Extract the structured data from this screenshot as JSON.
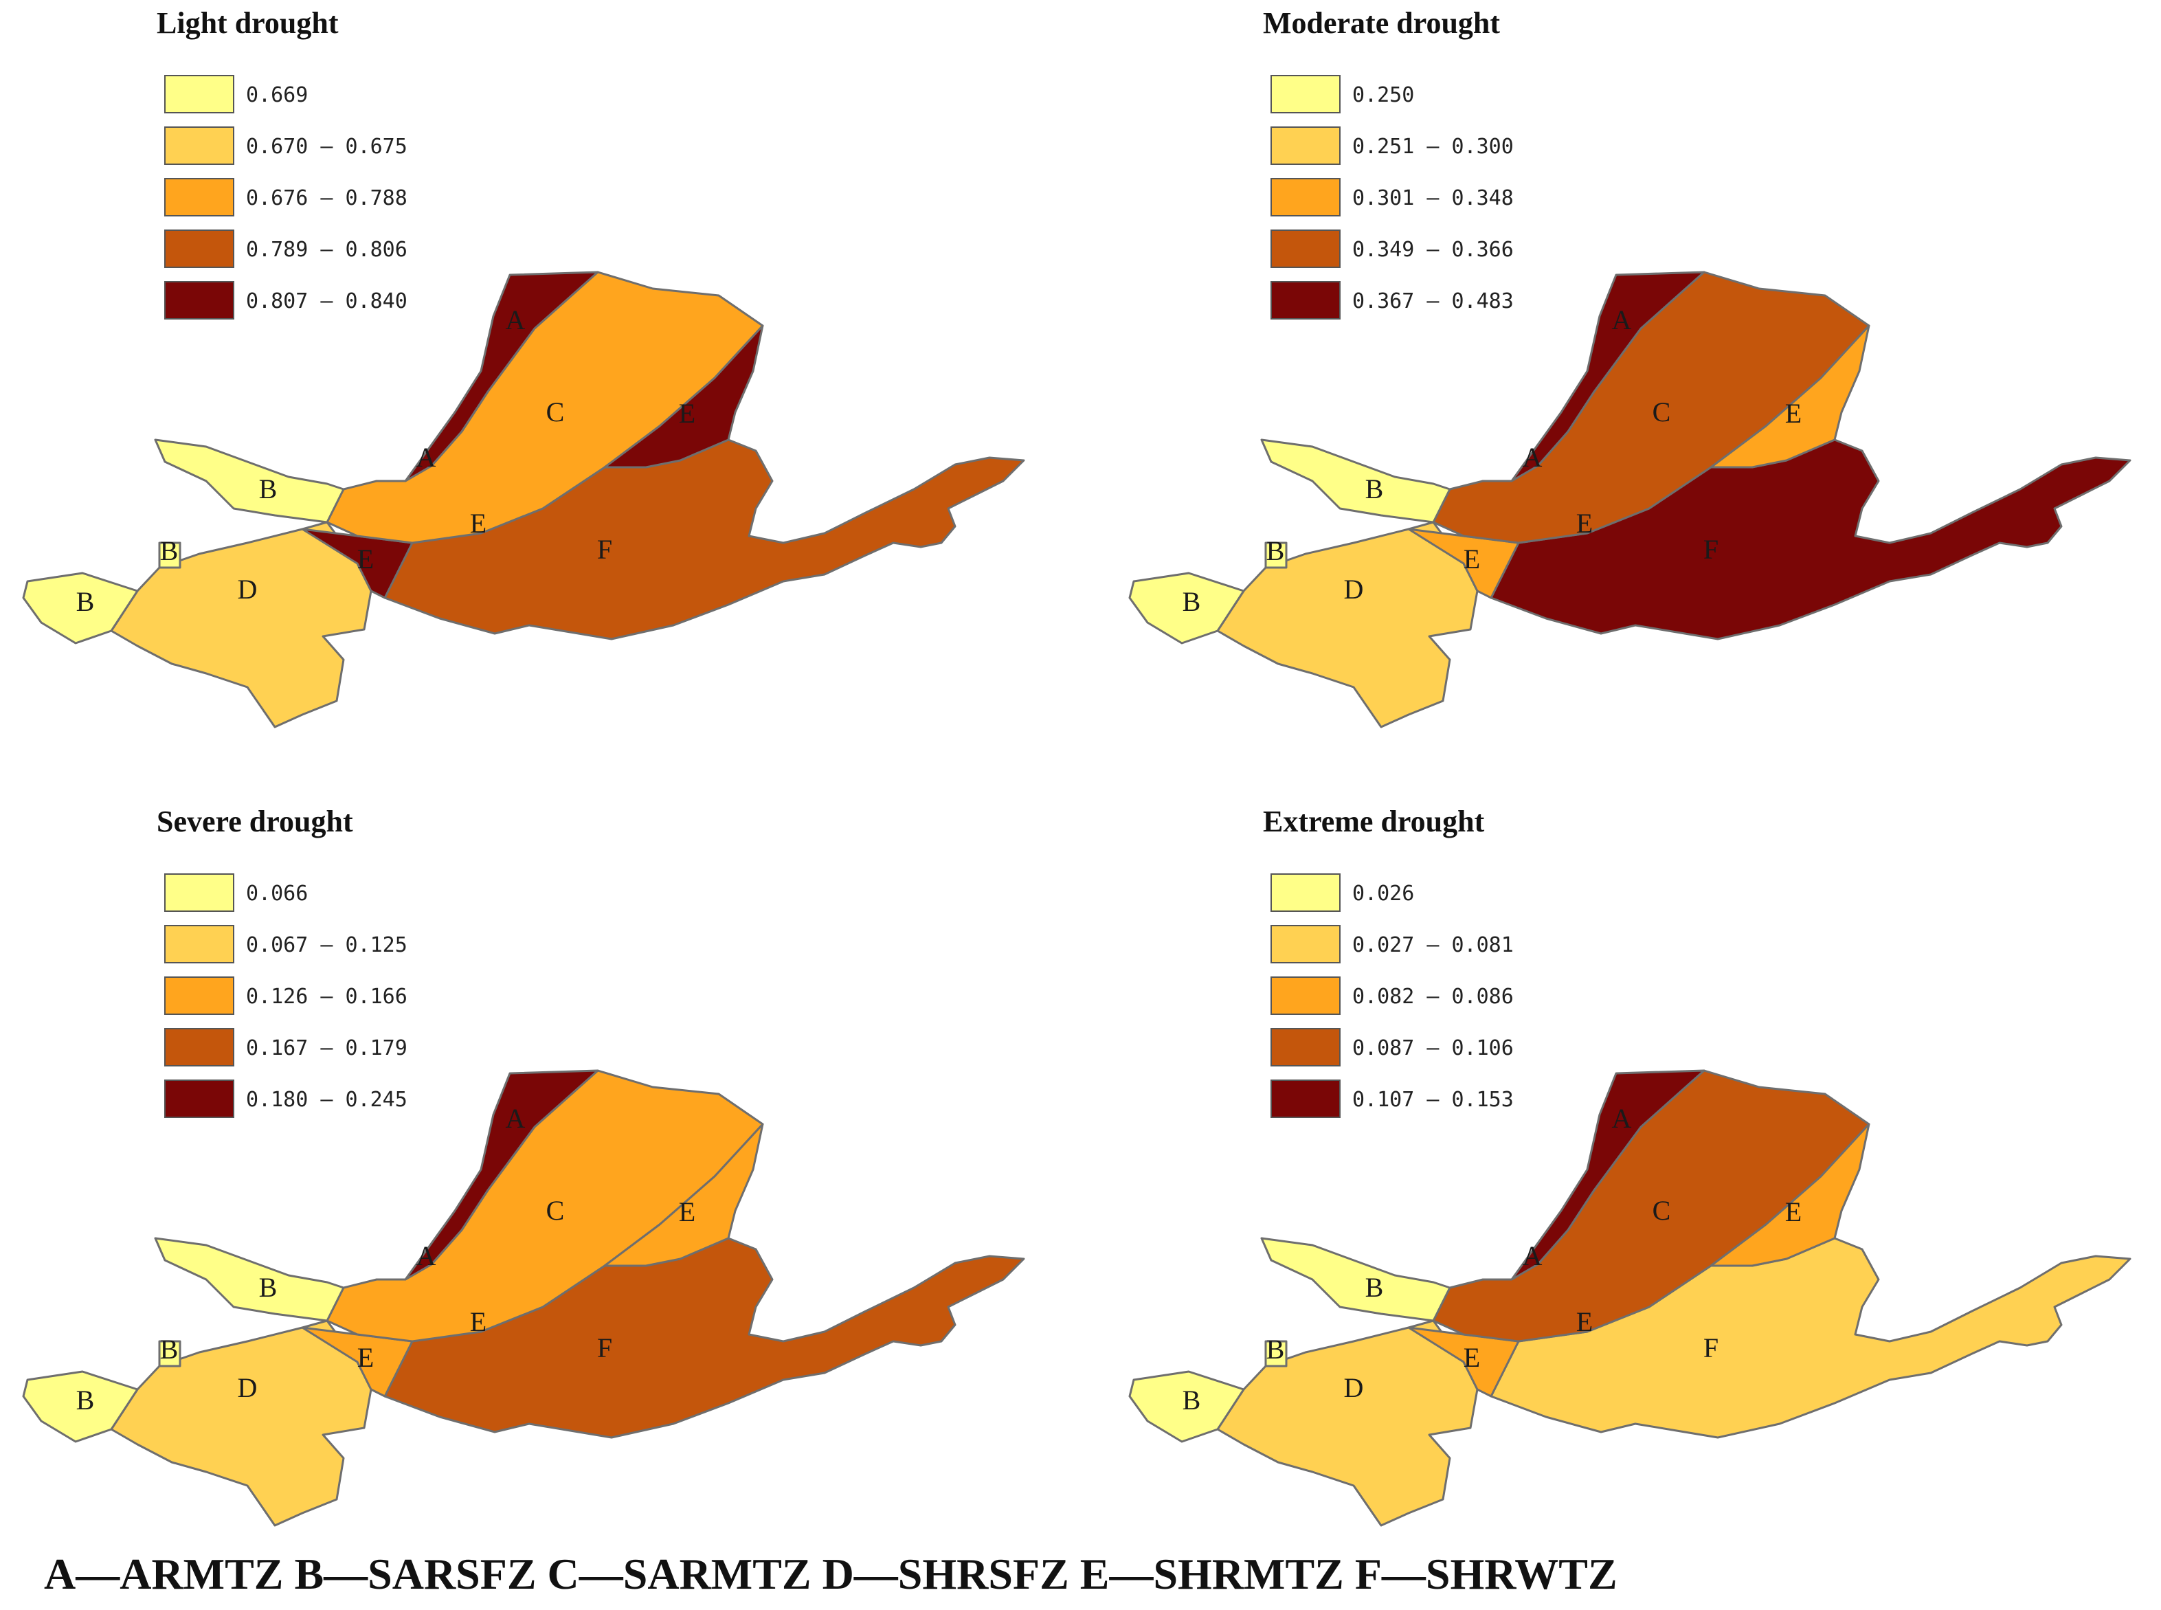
{
  "colors": {
    "class1": "#FFFF88",
    "class2": "#FFD152",
    "class3": "#FFA51E",
    "class4": "#C4560C",
    "class5": "#7A0606"
  },
  "maps": [
    {
      "title": "Light drought",
      "legend": [
        "0.669",
        "0.670 – 0.675",
        "0.676 – 0.788",
        "0.789 – 0.806",
        "0.807 – 0.840"
      ],
      "zone_classes": {
        "A": 5,
        "B": 1,
        "C": 3,
        "D": 2,
        "E_north": 5,
        "E_south": 5,
        "F": 4
      }
    },
    {
      "title": "Moderate drought",
      "legend": [
        "0.250",
        "0.251 – 0.300",
        "0.301 – 0.348",
        "0.349 – 0.366",
        "0.367 – 0.483"
      ],
      "zone_classes": {
        "A": 5,
        "B": 1,
        "C": 4,
        "D": 2,
        "E_north": 3,
        "E_south": 3,
        "F": 5
      }
    },
    {
      "title": "Severe drought",
      "legend": [
        "0.066",
        "0.067 – 0.125",
        "0.126 – 0.166",
        "0.167 – 0.179",
        "0.180 – 0.245"
      ],
      "zone_classes": {
        "A": 5,
        "B": 1,
        "C": 3,
        "D": 2,
        "E_north": 3,
        "E_south": 3,
        "F": 4
      }
    },
    {
      "title": "Extreme drought",
      "legend": [
        "0.026",
        "0.027 – 0.081",
        "0.082 – 0.086",
        "0.087 – 0.106",
        "0.107 – 0.153"
      ],
      "zone_classes": {
        "A": 5,
        "B": 1,
        "C": 4,
        "D": 2,
        "E_north": 3,
        "E_south": 3,
        "F": 2
      }
    }
  ],
  "zone_letters": [
    "A",
    "B",
    "C",
    "D",
    "E",
    "F"
  ],
  "caption": "A—ARMTZ B—SARSFZ C—SARMTZ D—SHRSFZ E—SHRMTZ F—SHRWTZ"
}
